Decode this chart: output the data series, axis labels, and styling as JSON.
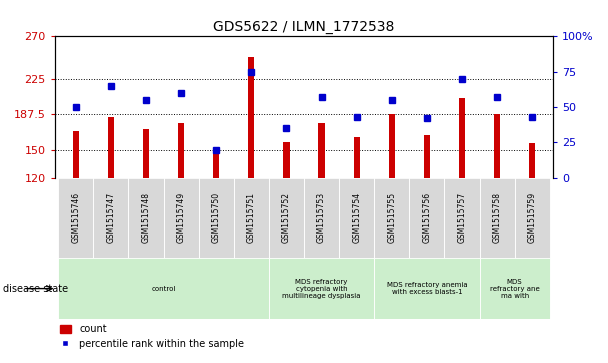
{
  "title": "GDS5622 / ILMN_1772538",
  "samples": [
    "GSM1515746",
    "GSM1515747",
    "GSM1515748",
    "GSM1515749",
    "GSM1515750",
    "GSM1515751",
    "GSM1515752",
    "GSM1515753",
    "GSM1515754",
    "GSM1515755",
    "GSM1515756",
    "GSM1515757",
    "GSM1515758",
    "GSM1515759"
  ],
  "counts": [
    170,
    185,
    172,
    178,
    150,
    248,
    158,
    178,
    163,
    188,
    165,
    205,
    188,
    157
  ],
  "percentile_ranks": [
    50,
    65,
    55,
    60,
    20,
    75,
    35,
    57,
    43,
    55,
    42,
    70,
    57,
    43
  ],
  "ylim_left": [
    120,
    270
  ],
  "ylim_right": [
    0,
    100
  ],
  "yticks_left": [
    120,
    150,
    187.5,
    225,
    270
  ],
  "ytick_labels_left": [
    "120",
    "150",
    "187.5",
    "225",
    "270"
  ],
  "yticks_right": [
    0,
    25,
    50,
    75,
    100
  ],
  "ytick_labels_right": [
    "0",
    "25",
    "50",
    "75",
    "100%"
  ],
  "bar_color": "#cc0000",
  "dot_color": "#0000cc",
  "background_plot": "#ffffff",
  "group_defs": [
    {
      "start": 0,
      "end": 6,
      "label": "control",
      "color": "#cceecc"
    },
    {
      "start": 6,
      "end": 9,
      "label": "MDS refractory\ncytopenia with\nmultilineage dysplasia",
      "color": "#cceecc"
    },
    {
      "start": 9,
      "end": 12,
      "label": "MDS refractory anemia\nwith excess blasts-1",
      "color": "#cceecc"
    },
    {
      "start": 12,
      "end": 14,
      "label": "MDS\nrefractory ane\nma with",
      "color": "#cceecc"
    }
  ],
  "legend_count_label": "count",
  "legend_pct_label": "percentile rank within the sample",
  "axis_label_color_left": "#cc0000",
  "axis_label_color_right": "#0000cc",
  "sample_box_color": "#d8d8d8",
  "bar_width": 0.18
}
